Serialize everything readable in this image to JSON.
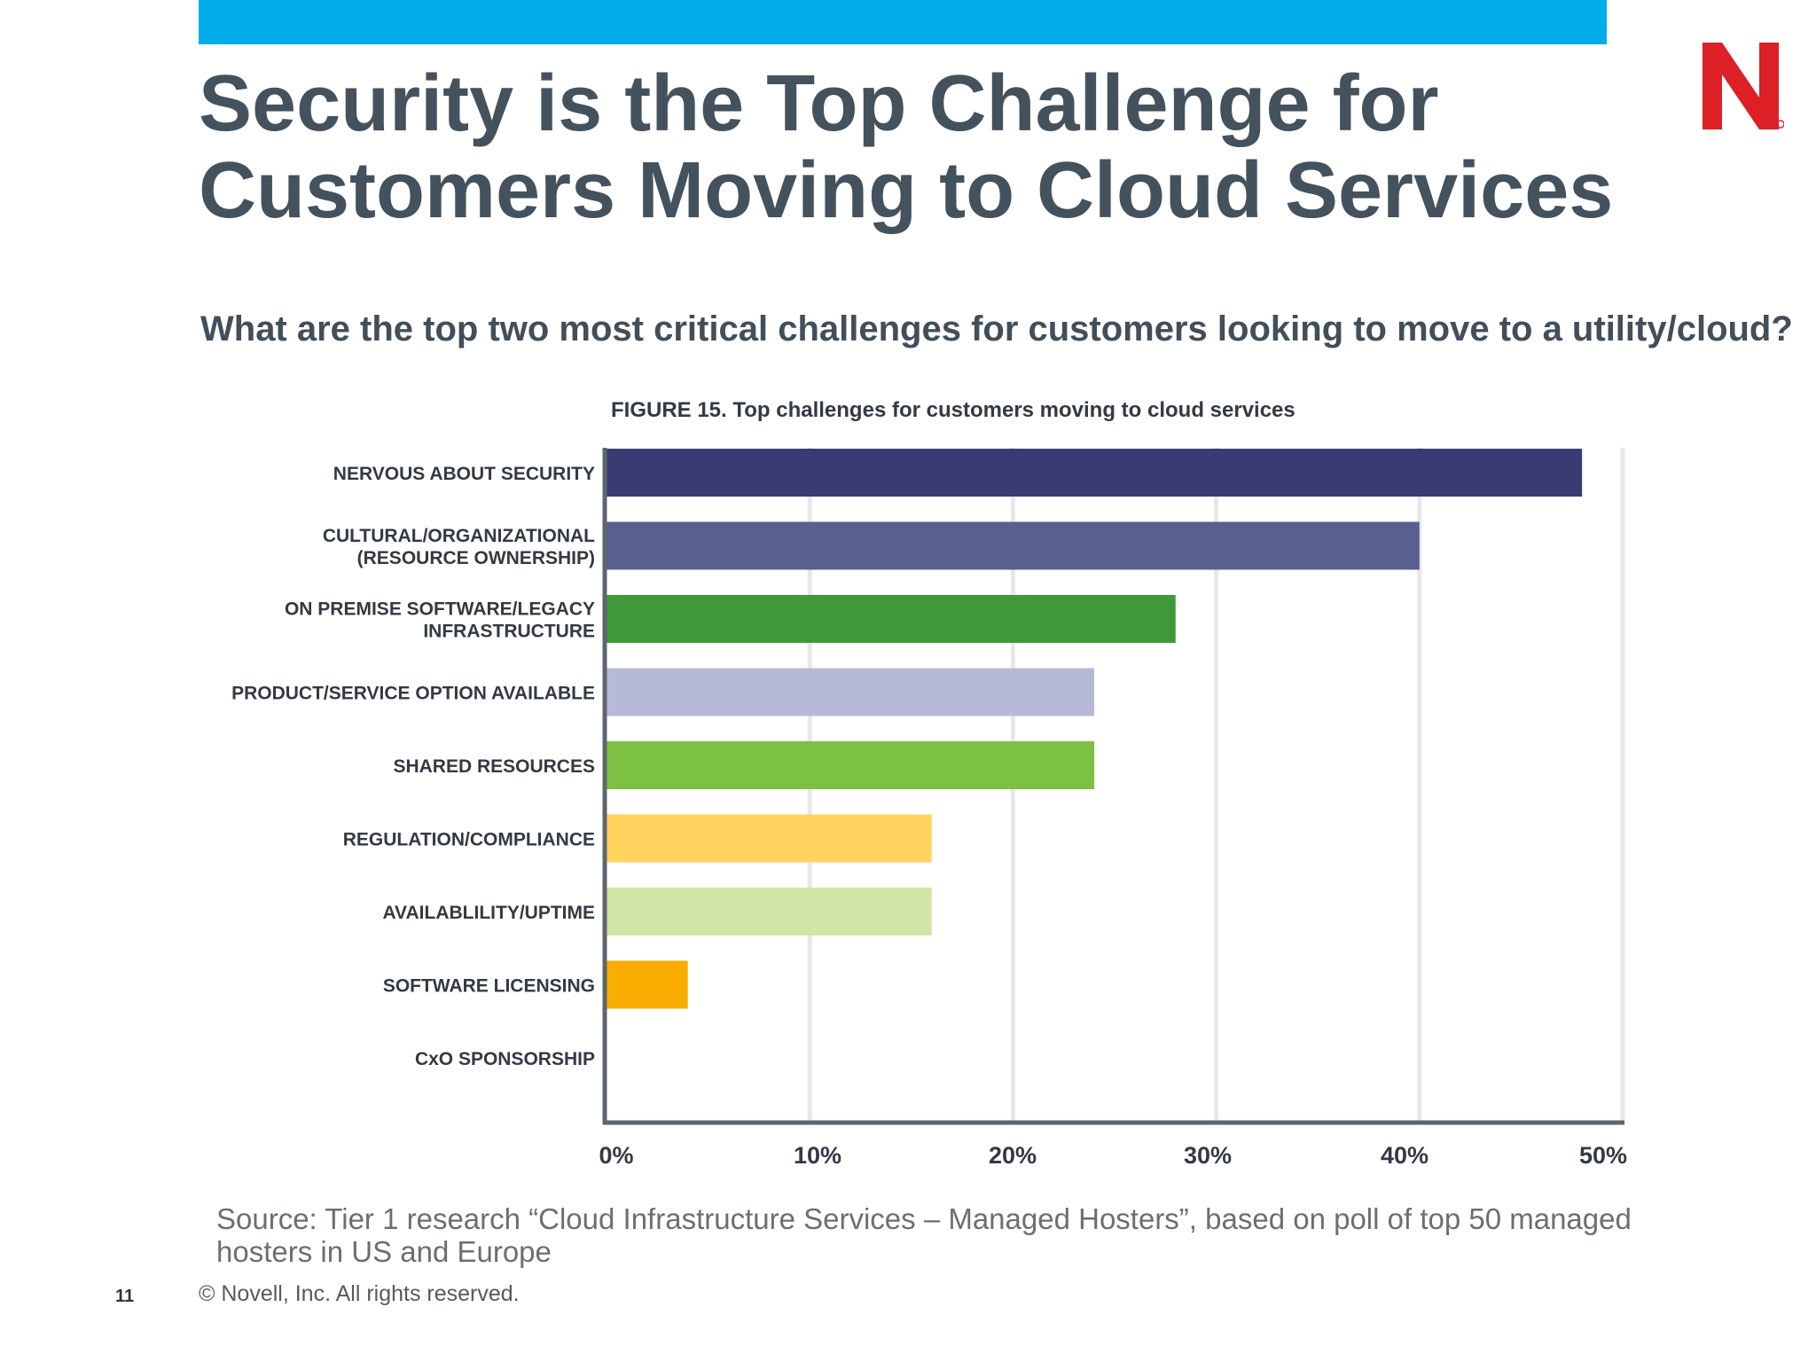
{
  "colors": {
    "top_bar": "#00ade9",
    "logo": "#dd1f26",
    "axis": "#5f656c",
    "gridline": "#e8e8e8",
    "title_text": "#44525d",
    "label_text": "#333a44"
  },
  "header": {
    "title_line1": "Security is the Top Challenge for",
    "title_line2": "Customers Moving to Cloud Services",
    "logo_icon": "novell-n-logo"
  },
  "question": "What are the top two most critical challenges for customers looking to move to a utility/cloud?",
  "chart_data": {
    "type": "bar",
    "orientation": "horizontal",
    "title": "FIGURE 15. Top challenges for customers moving to cloud services",
    "categories": [
      [
        "NERVOUS ABOUT SECURITY"
      ],
      [
        "CULTURAL/ORGANIZATIONAL",
        "(RESOURCE OWNERSHIP)"
      ],
      [
        "ON PREMISE SOFTWARE/LEGACY",
        "INFRASTRUCTURE"
      ],
      [
        "PRODUCT/SERVICE OPTION AVAILABLE"
      ],
      [
        "SHARED RESOURCES"
      ],
      [
        "REGULATION/COMPLIANCE"
      ],
      [
        "AVAILABLILITY/UPTIME"
      ],
      [
        "SOFTWARE LICENSING"
      ],
      [
        "CxO SPONSORSHIP"
      ]
    ],
    "values": [
      48,
      40,
      28,
      24,
      24,
      16,
      16,
      4,
      0
    ],
    "bar_colors": [
      "#393c73",
      "#57608e",
      "#409939",
      "#b6bad6",
      "#7cc142",
      "#ffd35d",
      "#d2e4a6",
      "#f8ad00",
      "#ffffff"
    ],
    "xlim": [
      0,
      50
    ],
    "xticks": [
      "0%",
      "10%",
      "20%",
      "30%",
      "40%",
      "50%"
    ],
    "grid": true,
    "legend": "none"
  },
  "footer": {
    "source_line1": "Source: Tier 1 research “Cloud Infrastructure Services – Managed Hosters”, based on poll of top 50 managed",
    "source_line2": "hosters in US and Europe",
    "page_number": "11",
    "copyright": "©  Novell, Inc.  All rights reserved."
  }
}
